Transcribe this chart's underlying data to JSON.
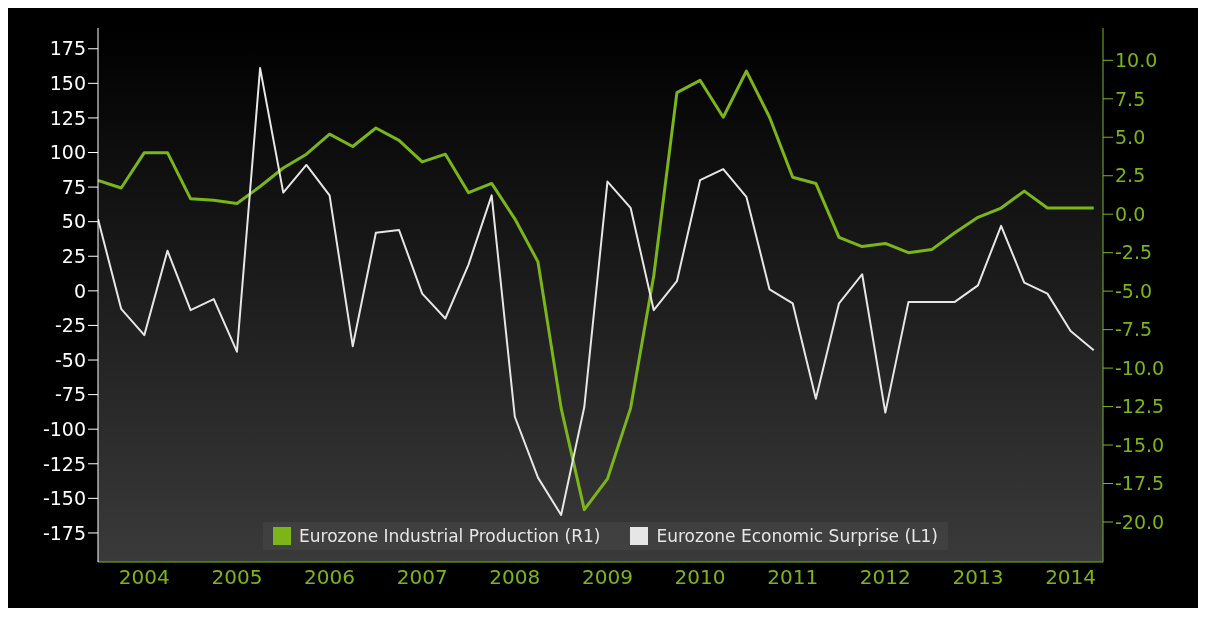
{
  "chart_data": {
    "type": "line",
    "x": [
      2004,
      2004.25,
      2004.5,
      2004.75,
      2005,
      2005.25,
      2005.5,
      2005.75,
      2006,
      2006.25,
      2006.5,
      2006.75,
      2007,
      2007.25,
      2007.5,
      2007.75,
      2008,
      2008.25,
      2008.5,
      2008.75,
      2009,
      2009.25,
      2009.5,
      2009.75,
      2010,
      2010.25,
      2010.5,
      2010.75,
      2011,
      2011.25,
      2011.5,
      2011.75,
      2012,
      2012.25,
      2012.5,
      2012.75,
      2013,
      2013.25,
      2013.5,
      2013.75,
      2014,
      2014.25,
      2014.5,
      2014.75
    ],
    "series": [
      {
        "name": "Eurozone Industrial Production  (R1)",
        "color": "#7cb518",
        "axis": "y2",
        "values": [
          2.2,
          1.7,
          4.0,
          4.0,
          1.0,
          0.9,
          0.7,
          1.8,
          3.0,
          3.9,
          5.2,
          4.4,
          5.6,
          4.8,
          3.4,
          3.9,
          1.4,
          2.0,
          -0.3,
          -3.1,
          -12.6,
          -19.2,
          -17.2,
          -12.6,
          -4.0,
          7.9,
          8.7,
          6.3,
          9.3,
          6.3,
          2.4,
          2.0,
          -1.5,
          -2.1,
          -1.9,
          -2.5,
          -2.3,
          -1.2,
          -0.2,
          0.4,
          1.5,
          0.4,
          0.4,
          0.4
        ]
      },
      {
        "name": "Eurozone Economic Surprise  (L1)",
        "color": "#e6e6e6",
        "axis": "y",
        "values": [
          52,
          -13,
          -32,
          29,
          -14,
          -6,
          -44,
          161,
          71,
          91,
          69,
          -40,
          42,
          44,
          -2,
          -20,
          19,
          69,
          -91,
          -135,
          -162,
          -84,
          79,
          60,
          -14,
          7,
          80,
          88,
          68,
          1,
          -9,
          -78,
          -9,
          12,
          -88,
          -8,
          -8,
          -8,
          4,
          47,
          6,
          -2,
          -29,
          -43
        ]
      }
    ],
    "xlim": [
      2004,
      2014.85
    ],
    "xticks": [
      {
        "value": 2004.5,
        "label": "2004"
      },
      {
        "value": 2005.5,
        "label": "2005"
      },
      {
        "value": 2006.5,
        "label": "2006"
      },
      {
        "value": 2007.5,
        "label": "2007"
      },
      {
        "value": 2008.5,
        "label": "2008"
      },
      {
        "value": 2009.5,
        "label": "2009"
      },
      {
        "value": 2010.5,
        "label": "2010"
      },
      {
        "value": 2011.5,
        "label": "2011"
      },
      {
        "value": 2012.5,
        "label": "2012"
      },
      {
        "value": 2013.5,
        "label": "2013"
      },
      {
        "value": 2014.5,
        "label": "2014"
      }
    ],
    "ylim": [
      -196,
      190
    ],
    "yticks": [
      -175,
      -150,
      -125,
      -100,
      -75,
      -50,
      -25,
      0,
      25,
      50,
      75,
      100,
      125,
      150,
      175
    ],
    "y2lim": [
      -22.6,
      12.1
    ],
    "y2ticks": [
      {
        "value": -20,
        "label": "-20.0"
      },
      {
        "value": -17.5,
        "label": "-17.5"
      },
      {
        "value": -15,
        "label": "-15.0"
      },
      {
        "value": -12.5,
        "label": "-12.5"
      },
      {
        "value": -10,
        "label": "-10.0"
      },
      {
        "value": -7.5,
        "label": "-7.5"
      },
      {
        "value": -5,
        "label": "-5.0"
      },
      {
        "value": -2.5,
        "label": "-2.5"
      },
      {
        "value": 0,
        "label": "0.0"
      },
      {
        "value": 2.5,
        "label": "2.5"
      },
      {
        "value": 5,
        "label": "5.0"
      },
      {
        "value": 7.5,
        "label": "7.5"
      },
      {
        "value": 10,
        "label": "10.0"
      }
    ],
    "grid": false,
    "legend": "bottom",
    "marker": "none",
    "line_style": "solid"
  }
}
